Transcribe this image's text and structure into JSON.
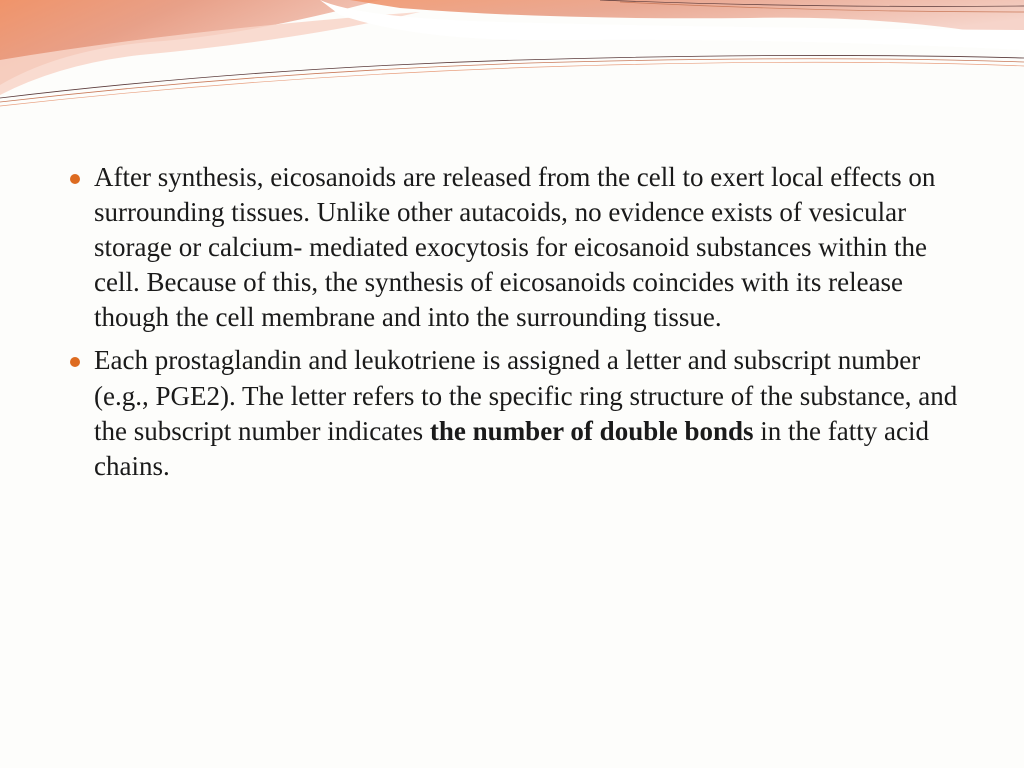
{
  "header": {
    "gradient_start": "#f5a978",
    "gradient_mid": "#e68a6a",
    "wave_light": "#f8d5c8",
    "wave_white": "#ffffff",
    "line_colors": [
      "#5a3a3a",
      "#c97a5a",
      "#e8a080"
    ]
  },
  "bullets": [
    {
      "text_parts": [
        {
          "text": "After synthesis, eicosanoids are released from the cell to exert local effects  on surrounding  tissues.   Unlike other autacoids, no evidence exists of vesicular storage or calcium- mediated exocytosis for eicosanoid substances within  the cell. Because of this, the synthesis of eicosanoids coincides with its release though  the cell membrane and into the surrounding tissue.",
          "bold": false
        }
      ]
    },
    {
      "text_parts": [
        {
          "text": "Each prostaglandin and leukotriene  is assigned a letter and subscript number (e.g., PGE2). The letter refers to the specific  ring structure of the substance, and the subscript number indicates ",
          "bold": false
        },
        {
          "text": "the number of double bonds",
          "bold": true
        },
        {
          "text": " in the fatty acid chains.",
          "bold": false
        }
      ]
    }
  ],
  "style": {
    "bullet_color": "#dd6b20",
    "text_color": "#1a1a1a",
    "font_size": 27,
    "background": "#fdfdfb"
  }
}
